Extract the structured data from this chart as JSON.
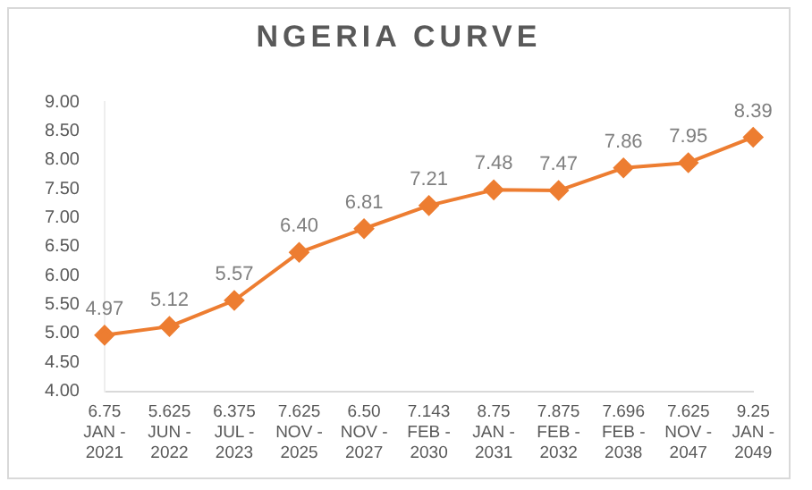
{
  "chart_data": {
    "type": "line",
    "title": "NGERIA CURVE",
    "categories": [
      "6.75\nJAN -\n2021",
      "5.625\nJUN -\n2022",
      "6.375\nJUL -\n2023",
      "7.625\nNOV -\n2025",
      "6.50\nNOV -\n2027",
      "7.143\nFEB -\n2030",
      "8.75\nJAN -\n2031",
      "7.875\nFEB -\n2032",
      "7.696\nFEB -\n2038",
      "7.625\nNOV -\n2047",
      "9.25\nJAN -\n2049"
    ],
    "series": [
      {
        "color": "#ed7d31",
        "values": [
          4.97,
          5.12,
          5.57,
          6.4,
          6.81,
          7.21,
          7.48,
          7.47,
          7.86,
          7.95,
          8.39
        ]
      }
    ],
    "value_labels": [
      "4.97",
      "5.12",
      "5.57",
      "6.40",
      "6.81",
      "7.21",
      "7.48",
      "7.47",
      "7.86",
      "7.95",
      "8.39"
    ],
    "ylim": [
      4,
      9
    ],
    "yticks": [
      {
        "value": 4,
        "label": "4.00"
      },
      {
        "value": 4.5,
        "label": "4.50"
      },
      {
        "value": 5,
        "label": "5.00"
      },
      {
        "value": 5.5,
        "label": "5.50"
      },
      {
        "value": 6,
        "label": "6.00"
      },
      {
        "value": 6.5,
        "label": "6.50"
      },
      {
        "value": 7,
        "label": "7.00"
      },
      {
        "value": 7.5,
        "label": "7.50"
      },
      {
        "value": 8,
        "label": "8.00"
      },
      {
        "value": 8.5,
        "label": "8.50"
      },
      {
        "value": 9,
        "label": "9.00"
      }
    ],
    "grid": false,
    "legend": false,
    "marker": "diamond",
    "line_style": "solid"
  }
}
